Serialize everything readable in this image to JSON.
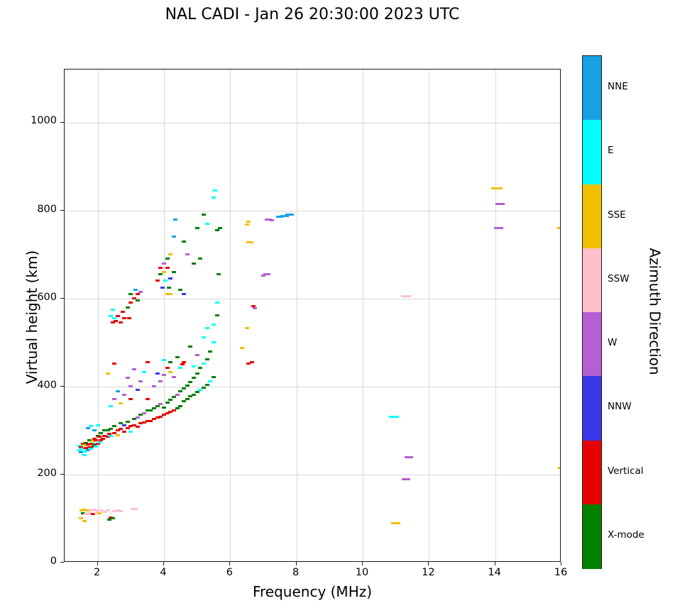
{
  "title": "NAL CADI - Jan 26 20:30:00 2023 UTC",
  "chart_data": {
    "type": "scatter",
    "title": "NAL CADI - Jan 26 20:30:00 2023 UTC",
    "xlabel": "Frequency (MHz)",
    "ylabel": "Virtual height (km)",
    "xlim": [
      1,
      16
    ],
    "ylim": [
      0,
      1120
    ],
    "xticks": [
      2,
      4,
      6,
      8,
      10,
      12,
      14,
      16
    ],
    "yticks": [
      0,
      200,
      400,
      600,
      800,
      1000
    ],
    "grid": true,
    "grid_color": "#d9d9d9",
    "marker": {
      "width": 6,
      "height": 3
    },
    "colorbar": {
      "title": "Azimuth Direction",
      "position": "right",
      "categories": [
        {
          "key": "NNE",
          "label": "NNE",
          "color": "#17a2e6"
        },
        {
          "key": "E",
          "label": "E",
          "color": "#00ffff"
        },
        {
          "key": "SSE",
          "label": "SSE",
          "color": "#f0c000"
        },
        {
          "key": "SSW",
          "label": "SSW",
          "color": "#ffc0cd"
        },
        {
          "key": "W",
          "label": "W",
          "color": "#b45fd2"
        },
        {
          "key": "NNW",
          "label": "NNW",
          "color": "#3838e8"
        },
        {
          "key": "V",
          "label": "Vertical",
          "color": "#e60000"
        },
        {
          "key": "X",
          "label": "X-mode",
          "color": "#007f00"
        }
      ]
    },
    "points": [
      [
        1.5,
        100,
        "SSE"
      ],
      [
        1.52,
        118,
        "SSE"
      ],
      [
        1.55,
        112,
        "X"
      ],
      [
        1.6,
        95,
        "SSE"
      ],
      [
        1.6,
        120,
        "SSE"
      ],
      [
        1.65,
        110,
        "SSW"
      ],
      [
        1.7,
        118,
        "SSE"
      ],
      [
        1.75,
        112,
        "SSW"
      ],
      [
        1.8,
        118,
        "SSW"
      ],
      [
        1.85,
        110,
        "V"
      ],
      [
        1.9,
        120,
        "SSW"
      ],
      [
        1.95,
        114,
        "SSW"
      ],
      [
        2.0,
        118,
        "SSW"
      ],
      [
        2.05,
        112,
        "SSE"
      ],
      [
        2.1,
        118,
        "SSW"
      ],
      [
        2.2,
        116,
        "SSW"
      ],
      [
        2.3,
        118,
        "SSW"
      ],
      [
        2.35,
        98,
        "X"
      ],
      [
        2.4,
        102,
        "V"
      ],
      [
        2.45,
        100,
        "X"
      ],
      [
        2.5,
        117,
        "SSW"
      ],
      [
        2.6,
        119,
        "SSW"
      ],
      [
        2.7,
        117,
        "SSW"
      ],
      [
        3.1,
        122,
        "SSW",
        10
      ],
      [
        1.45,
        255,
        "E"
      ],
      [
        1.45,
        265,
        "E"
      ],
      [
        1.5,
        250,
        "NNE"
      ],
      [
        1.5,
        262,
        "V"
      ],
      [
        1.55,
        258,
        "E"
      ],
      [
        1.55,
        270,
        "V"
      ],
      [
        1.6,
        252,
        "E"
      ],
      [
        1.6,
        266,
        "SSE"
      ],
      [
        1.65,
        260,
        "V"
      ],
      [
        1.65,
        272,
        "X"
      ],
      [
        1.7,
        255,
        "NNE"
      ],
      [
        1.7,
        268,
        "V"
      ],
      [
        1.75,
        262,
        "V"
      ],
      [
        1.75,
        278,
        "X"
      ],
      [
        1.8,
        258,
        "E"
      ],
      [
        1.8,
        270,
        "V"
      ],
      [
        1.85,
        264,
        "V"
      ],
      [
        1.85,
        276,
        "SSE"
      ],
      [
        1.9,
        268,
        "X"
      ],
      [
        1.9,
        282,
        "V"
      ],
      [
        1.95,
        264,
        "E"
      ],
      [
        1.95,
        278,
        "V"
      ],
      [
        2.0,
        270,
        "V"
      ],
      [
        2.0,
        288,
        "X"
      ],
      [
        2.05,
        274,
        "E"
      ],
      [
        2.05,
        286,
        "V"
      ],
      [
        2.1,
        278,
        "V"
      ],
      [
        2.1,
        294,
        "X"
      ],
      [
        2.15,
        282,
        "V"
      ],
      [
        2.2,
        288,
        "V"
      ],
      [
        2.2,
        300,
        "X"
      ],
      [
        1.7,
        305,
        "NNE"
      ],
      [
        1.8,
        310,
        "E"
      ],
      [
        1.9,
        300,
        "NNE"
      ],
      [
        2.0,
        312,
        "E"
      ],
      [
        1.6,
        245,
        "E"
      ],
      [
        2.3,
        286,
        "V"
      ],
      [
        2.3,
        300,
        "X"
      ],
      [
        2.35,
        292,
        "V"
      ],
      [
        2.4,
        288,
        "E"
      ],
      [
        2.4,
        304,
        "X"
      ],
      [
        2.5,
        294,
        "V"
      ],
      [
        2.5,
        310,
        "X"
      ],
      [
        2.6,
        300,
        "V"
      ],
      [
        2.6,
        290,
        "SSE"
      ],
      [
        2.7,
        304,
        "V"
      ],
      [
        2.7,
        316,
        "X"
      ],
      [
        2.8,
        298,
        "V"
      ],
      [
        2.8,
        312,
        "NNW"
      ],
      [
        2.9,
        306,
        "V"
      ],
      [
        2.9,
        320,
        "X"
      ],
      [
        3.0,
        310,
        "V"
      ],
      [
        3.0,
        298,
        "E"
      ],
      [
        3.1,
        312,
        "V"
      ],
      [
        3.1,
        326,
        "X"
      ],
      [
        3.2,
        308,
        "V"
      ],
      [
        3.2,
        330,
        "W"
      ],
      [
        3.3,
        316,
        "V"
      ],
      [
        3.3,
        336,
        "X"
      ],
      [
        3.4,
        318,
        "V"
      ],
      [
        3.4,
        340,
        "W"
      ],
      [
        3.5,
        322,
        "V"
      ],
      [
        3.5,
        346,
        "X"
      ],
      [
        2.4,
        355,
        "E"
      ],
      [
        2.5,
        372,
        "W"
      ],
      [
        2.6,
        390,
        "NNE"
      ],
      [
        2.7,
        362,
        "SSE"
      ],
      [
        2.8,
        382,
        "W"
      ],
      [
        2.9,
        420,
        "W"
      ],
      [
        3.0,
        372,
        "V"
      ],
      [
        3.0,
        400,
        "W"
      ],
      [
        3.1,
        440,
        "W"
      ],
      [
        3.2,
        392,
        "NNW"
      ],
      [
        3.3,
        412,
        "W"
      ],
      [
        3.4,
        432,
        "E"
      ],
      [
        3.5,
        372,
        "V"
      ],
      [
        3.5,
        455,
        "V"
      ],
      [
        2.5,
        452,
        "V"
      ],
      [
        2.3,
        430,
        "SSE"
      ],
      [
        3.6,
        322,
        "V"
      ],
      [
        3.6,
        346,
        "X"
      ],
      [
        3.7,
        326,
        "V"
      ],
      [
        3.7,
        350,
        "X"
      ],
      [
        3.8,
        330,
        "V"
      ],
      [
        3.8,
        356,
        "X"
      ],
      [
        3.9,
        332,
        "V"
      ],
      [
        3.9,
        360,
        "W"
      ],
      [
        4.0,
        336,
        "V"
      ],
      [
        4.0,
        352,
        "X"
      ],
      [
        4.1,
        340,
        "V"
      ],
      [
        4.1,
        364,
        "X"
      ],
      [
        4.2,
        342,
        "V"
      ],
      [
        4.2,
        370,
        "X"
      ],
      [
        4.3,
        346,
        "V"
      ],
      [
        4.3,
        376,
        "X"
      ],
      [
        4.4,
        350,
        "X"
      ],
      [
        4.4,
        382,
        "W"
      ],
      [
        4.5,
        356,
        "X"
      ],
      [
        4.5,
        390,
        "X"
      ],
      [
        3.7,
        400,
        "W"
      ],
      [
        3.8,
        430,
        "NNW"
      ],
      [
        3.9,
        412,
        "W"
      ],
      [
        4.0,
        426,
        "W"
      ],
      [
        4.0,
        460,
        "E"
      ],
      [
        4.1,
        442,
        "V"
      ],
      [
        4.2,
        456,
        "X"
      ],
      [
        4.3,
        422,
        "W"
      ],
      [
        4.4,
        466,
        "X"
      ],
      [
        4.5,
        442,
        "E"
      ],
      [
        4.2,
        432,
        "SSE"
      ],
      [
        4.6,
        366,
        "X"
      ],
      [
        4.6,
        396,
        "X"
      ],
      [
        4.7,
        372,
        "X"
      ],
      [
        4.7,
        402,
        "X"
      ],
      [
        4.8,
        378,
        "X"
      ],
      [
        4.8,
        410,
        "X"
      ],
      [
        4.9,
        382,
        "X"
      ],
      [
        4.9,
        420,
        "X"
      ],
      [
        5.0,
        388,
        "X"
      ],
      [
        5.0,
        430,
        "X"
      ],
      [
        5.1,
        392,
        "E"
      ],
      [
        5.1,
        442,
        "X"
      ],
      [
        5.2,
        398,
        "X"
      ],
      [
        5.2,
        452,
        "E"
      ],
      [
        5.3,
        404,
        "X"
      ],
      [
        5.3,
        462,
        "X"
      ],
      [
        5.4,
        412,
        "E"
      ],
      [
        5.4,
        480,
        "X"
      ],
      [
        5.5,
        422,
        "X"
      ],
      [
        5.5,
        500,
        "E"
      ],
      [
        5.5,
        540,
        "E"
      ],
      [
        5.6,
        562,
        "X"
      ],
      [
        5.6,
        590,
        "E"
      ],
      [
        5.65,
        655,
        "X"
      ],
      [
        4.55,
        450,
        "V"
      ],
      [
        4.6,
        456,
        "V"
      ],
      [
        4.8,
        490,
        "X"
      ],
      [
        5.0,
        472,
        "W"
      ],
      [
        5.2,
        512,
        "E"
      ],
      [
        5.3,
        532,
        "E"
      ],
      [
        4.9,
        446,
        "E"
      ],
      [
        2.4,
        560,
        "E"
      ],
      [
        2.45,
        575,
        "E"
      ],
      [
        2.45,
        545,
        "V"
      ],
      [
        2.5,
        555,
        "E"
      ],
      [
        2.55,
        548,
        "V"
      ],
      [
        2.6,
        560,
        "V"
      ],
      [
        2.7,
        545,
        "V"
      ],
      [
        2.75,
        570,
        "V"
      ],
      [
        2.8,
        555,
        "V"
      ],
      [
        2.9,
        580,
        "X"
      ],
      [
        2.95,
        555,
        "V"
      ],
      [
        3.0,
        590,
        "V"
      ],
      [
        3.0,
        610,
        "X"
      ],
      [
        3.1,
        600,
        "V"
      ],
      [
        3.15,
        620,
        "NNE"
      ],
      [
        3.2,
        610,
        "V"
      ],
      [
        3.2,
        595,
        "X"
      ],
      [
        3.3,
        615,
        "W"
      ],
      [
        3.8,
        640,
        "V"
      ],
      [
        3.9,
        655,
        "X"
      ],
      [
        3.9,
        670,
        "V"
      ],
      [
        4.0,
        660,
        "SSE"
      ],
      [
        4.0,
        680,
        "W"
      ],
      [
        4.1,
        670,
        "V"
      ],
      [
        4.1,
        690,
        "X"
      ],
      [
        4.2,
        700,
        "SSE"
      ],
      [
        4.3,
        740,
        "NNE"
      ],
      [
        4.3,
        660,
        "X"
      ],
      [
        4.2,
        645,
        "NNW"
      ],
      [
        4.35,
        780,
        "NNE"
      ],
      [
        4.05,
        640,
        "E"
      ],
      [
        3.95,
        625,
        "NNW"
      ],
      [
        4.1,
        610,
        "SSE"
      ],
      [
        4.15,
        625,
        "X"
      ],
      [
        4.2,
        610,
        "SSE"
      ],
      [
        4.6,
        730,
        "X"
      ],
      [
        4.7,
        700,
        "W"
      ],
      [
        4.9,
        680,
        "X"
      ],
      [
        5.0,
        760,
        "X"
      ],
      [
        5.2,
        790,
        "X"
      ],
      [
        5.3,
        770,
        "E"
      ],
      [
        5.5,
        830,
        "E"
      ],
      [
        5.55,
        845,
        "E"
      ],
      [
        5.6,
        755,
        "X"
      ],
      [
        5.7,
        760,
        "X"
      ],
      [
        5.1,
        690,
        "X"
      ],
      [
        4.5,
        620,
        "X"
      ],
      [
        4.6,
        610,
        "NNW"
      ],
      [
        6.35,
        488,
        "SSE"
      ],
      [
        6.5,
        533,
        "SSE"
      ],
      [
        6.55,
        452,
        "V"
      ],
      [
        6.65,
        455,
        "V"
      ],
      [
        6.7,
        582,
        "V"
      ],
      [
        6.75,
        578,
        "W"
      ],
      [
        6.6,
        728,
        "SSE",
        10
      ],
      [
        6.5,
        768,
        "SSE"
      ],
      [
        6.55,
        775,
        "SSE"
      ],
      [
        7.0,
        652,
        "W"
      ],
      [
        7.1,
        655,
        "W",
        10
      ],
      [
        7.15,
        780,
        "W",
        10
      ],
      [
        7.25,
        778,
        "W"
      ],
      [
        7.5,
        785,
        "NNE",
        10
      ],
      [
        7.65,
        788,
        "NNE",
        12
      ],
      [
        7.8,
        790,
        "NNE",
        12
      ],
      [
        10.95,
        332,
        "E",
        14
      ],
      [
        11.3,
        605,
        "SSW",
        14
      ],
      [
        11.4,
        240,
        "W",
        12
      ],
      [
        11.3,
        190,
        "W",
        12
      ],
      [
        11.0,
        90,
        "SSE",
        13
      ],
      [
        14.05,
        850,
        "SSE",
        16
      ],
      [
        14.15,
        815,
        "W",
        13
      ],
      [
        14.1,
        760,
        "W",
        13
      ],
      [
        15.95,
        760,
        "SSE",
        8
      ],
      [
        15.97,
        215,
        "SSE",
        8
      ]
    ]
  }
}
